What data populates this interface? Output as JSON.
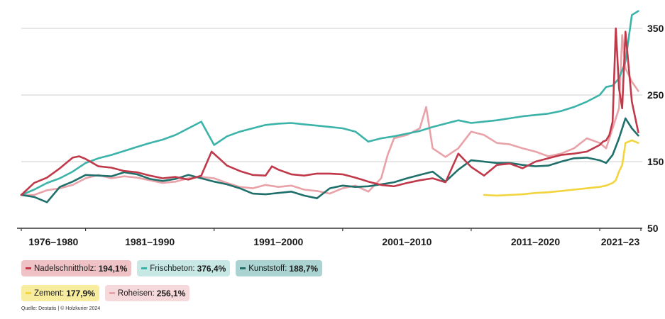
{
  "chart_data": {
    "type": "line",
    "yticks": [
      50,
      150,
      250,
      350
    ],
    "ylim": [
      50,
      380
    ],
    "xlim": [
      1976,
      2024.2
    ],
    "x_periods": [
      {
        "label": "1976–1980",
        "start": 1976,
        "end": 1981
      },
      {
        "label": "1981–1990",
        "start": 1981,
        "end": 1991
      },
      {
        "label": "1991–2000",
        "start": 1991,
        "end": 2001
      },
      {
        "label": "2001–2010",
        "start": 2001,
        "end": 2011
      },
      {
        "label": "2011–2020",
        "start": 2011,
        "end": 2021
      },
      {
        "label": "2021–23",
        "start": 2021,
        "end": 2024.2
      }
    ],
    "grid": true,
    "series": [
      {
        "name": "Nadelschnittholz",
        "value_label": "194,1%",
        "color": "#c0394a",
        "bg": "#efc3c6",
        "x": [
          1976,
          1977,
          1978,
          1979,
          1980,
          1980.5,
          1981,
          1982,
          1983,
          1984,
          1985,
          1986,
          1987,
          1988,
          1989,
          1990,
          1990.8,
          1991.5,
          1992,
          1993,
          1994,
          1995,
          1995.5,
          1996,
          1997,
          1998,
          1999,
          2000,
          2001,
          2002,
          2003,
          2004,
          2005,
          2006,
          2007,
          2008,
          2009,
          2010,
          2011,
          2012,
          2013,
          2014,
          2015,
          2016,
          2017,
          2018,
          2019,
          2020,
          2020.5,
          2021,
          2021.25,
          2021.5,
          2021.75,
          2022,
          2022.25,
          2022.5,
          2022.75,
          2023,
          2023.5,
          2024
        ],
        "y": [
          100,
          118,
          126,
          140,
          156,
          158,
          154,
          143,
          141,
          136,
          134,
          129,
          125,
          127,
          123,
          129,
          165,
          153,
          144,
          136,
          130,
          129,
          143,
          138,
          131,
          129,
          132,
          132,
          131,
          126,
          120,
          115,
          113,
          118,
          122,
          125,
          119,
          162,
          142,
          129,
          145,
          147,
          140,
          150,
          155,
          160,
          162,
          165,
          170,
          175,
          180,
          182,
          190,
          210,
          350,
          260,
          230,
          345,
          240,
          194
        ]
      },
      {
        "name": "Frischbeton",
        "value_label": "376,4%",
        "color": "#3bb3a8",
        "bg": "#c7e8e4",
        "x": [
          1976,
          1977,
          1978,
          1979,
          1980,
          1981,
          1982,
          1983,
          1984,
          1985,
          1986,
          1987,
          1988,
          1989,
          1990,
          1991,
          1992,
          1993,
          1994,
          1995,
          1996,
          1997,
          1998,
          1999,
          2000,
          2001,
          2002,
          2003,
          2004,
          2005,
          2006,
          2007,
          2008,
          2009,
          2010,
          2011,
          2012,
          2013,
          2014,
          2015,
          2016,
          2017,
          2018,
          2019,
          2020,
          2021,
          2021.5,
          2022,
          2022.5,
          2023,
          2023.5,
          2024
        ],
        "y": [
          100,
          108,
          118,
          125,
          135,
          148,
          155,
          160,
          166,
          172,
          178,
          183,
          190,
          200,
          210,
          175,
          188,
          195,
          200,
          205,
          207,
          208,
          206,
          204,
          202,
          200,
          195,
          180,
          185,
          188,
          192,
          196,
          202,
          207,
          212,
          208,
          210,
          212,
          215,
          218,
          220,
          222,
          226,
          232,
          240,
          250,
          262,
          264,
          275,
          300,
          370,
          376
        ]
      },
      {
        "name": "Kunststoff",
        "value_label": "188,7%",
        "color": "#1f6f6b",
        "bg": "#aad3d1",
        "x": [
          1976,
          1977,
          1978,
          1979,
          1980,
          1981,
          1982,
          1983,
          1984,
          1985,
          1986,
          1987,
          1988,
          1989,
          1990,
          1991,
          1992,
          1993,
          1994,
          1995,
          1996,
          1997,
          1998,
          1999,
          2000,
          2001,
          2002,
          2003,
          2004,
          2005,
          2006,
          2007,
          2008,
          2009,
          2010,
          2011,
          2012,
          2013,
          2014,
          2015,
          2016,
          2017,
          2018,
          2019,
          2020,
          2021,
          2021.5,
          2022,
          2022.5,
          2023,
          2023.5,
          2024
        ],
        "y": [
          100,
          97,
          89,
          112,
          120,
          130,
          129,
          128,
          134,
          131,
          124,
          121,
          124,
          130,
          125,
          120,
          116,
          110,
          102,
          101,
          103,
          105,
          99,
          95,
          110,
          114,
          112,
          113,
          116,
          119,
          125,
          130,
          135,
          120,
          138,
          152,
          150,
          148,
          148,
          145,
          143,
          144,
          150,
          155,
          156,
          152,
          148,
          160,
          185,
          215,
          200,
          189
        ]
      },
      {
        "name": "Zement",
        "value_label": "177,9%",
        "color": "#f2d43d",
        "bg": "#f8ec9f",
        "x": [
          2012,
          2013,
          2014,
          2015,
          2016,
          2017,
          2018,
          2019,
          2020,
          2021,
          2021.5,
          2022,
          2022.25,
          2022.5,
          2022.75,
          2023,
          2023.5,
          2024
        ],
        "y": [
          100,
          99,
          100,
          101,
          103,
          104,
          106,
          108,
          110,
          112,
          114,
          118,
          122,
          135,
          145,
          178,
          182,
          178
        ]
      },
      {
        "name": "Roheisen",
        "value_label": "256,1%",
        "color": "#e8a2a8",
        "bg": "#f6d9da",
        "x": [
          1976,
          1977,
          1978,
          1979,
          1980,
          1981,
          1982,
          1983,
          1984,
          1985,
          1986,
          1987,
          1988,
          1989,
          1990,
          1991,
          1992,
          1993,
          1994,
          1995,
          1996,
          1997,
          1998,
          1999,
          2000,
          2001,
          2002,
          2003,
          2004,
          2004.5,
          2005,
          2006,
          2007,
          2007.5,
          2008,
          2009,
          2010,
          2011,
          2012,
          2013,
          2014,
          2015,
          2016,
          2017,
          2018,
          2019,
          2020,
          2021,
          2021.5,
          2022,
          2022.5,
          2022.75,
          2023,
          2023.5,
          2024
        ],
        "y": [
          100,
          100,
          107,
          110,
          115,
          125,
          130,
          125,
          128,
          126,
          122,
          118,
          120,
          125,
          127,
          125,
          118,
          112,
          110,
          115,
          112,
          114,
          108,
          106,
          102,
          110,
          114,
          105,
          125,
          160,
          185,
          190,
          200,
          232,
          170,
          157,
          170,
          195,
          190,
          178,
          176,
          170,
          165,
          158,
          162,
          170,
          185,
          178,
          170,
          200,
          230,
          340,
          290,
          270,
          256
        ]
      }
    ],
    "legend_rows": [
      [
        0,
        1,
        2
      ],
      [
        3,
        4
      ]
    ],
    "source": "Quelle: Destatis | © Holzkurier 2024"
  }
}
